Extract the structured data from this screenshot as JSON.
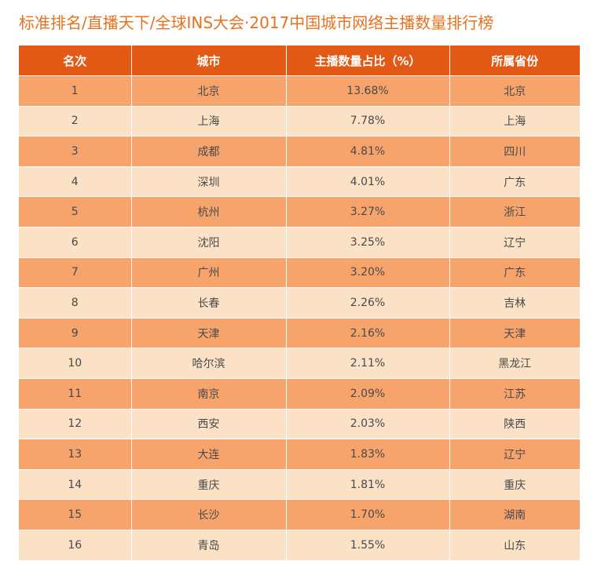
{
  "title": "标准排名/直播天下/全球INS大会·2017中国城市网络主播数量排行榜",
  "table": {
    "headers": [
      "名次",
      "城市",
      "主播数量占比（%）",
      "所属省份"
    ],
    "rows": [
      [
        "1",
        "北京",
        "13.68%",
        "北京"
      ],
      [
        "2",
        "上海",
        "7.78%",
        "上海"
      ],
      [
        "3",
        "成都",
        "4.81%",
        "四川"
      ],
      [
        "4",
        "深圳",
        "4.01%",
        "广东"
      ],
      [
        "5",
        "杭州",
        "3.27%",
        "浙江"
      ],
      [
        "6",
        "沈阳",
        "3.25%",
        "辽宁"
      ],
      [
        "7",
        "广州",
        "3.20%",
        "广东"
      ],
      [
        "8",
        "长春",
        "2.26%",
        "吉林"
      ],
      [
        "9",
        "天津",
        "2.16%",
        "天津"
      ],
      [
        "10",
        "哈尔滨",
        "2.11%",
        "黑龙江"
      ],
      [
        "11",
        "南京",
        "2.09%",
        "江苏"
      ],
      [
        "12",
        "西安",
        "2.03%",
        "陕西"
      ],
      [
        "13",
        "大连",
        "1.83%",
        "辽宁"
      ],
      [
        "14",
        "重庆",
        "1.81%",
        "重庆"
      ],
      [
        "15",
        "长沙",
        "1.70%",
        "湖南"
      ],
      [
        "16",
        "青岛",
        "1.55%",
        "山东"
      ]
    ]
  },
  "colors": {
    "title": "#e8711f",
    "header_bg": "#e25a16",
    "row_dark": "#f6a36c",
    "row_light": "#fbe1c5",
    "text": "#4a4a4a"
  }
}
